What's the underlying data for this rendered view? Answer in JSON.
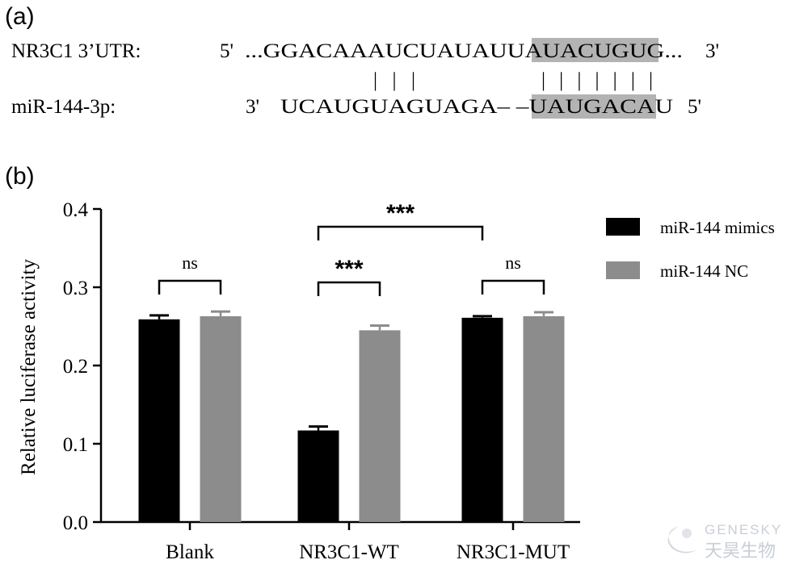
{
  "panel_a": {
    "label": "(a)",
    "row1": {
      "name": "NR3C1 3’UTR:",
      "prime_left": "5'",
      "seq_plain": "...GGACAAAUCUAUAUU",
      "seq_highlight": "AUACUGU",
      "seq_tail": "G...",
      "prime_right": "3'"
    },
    "pairing_marks": "| | |",
    "pairing_marks_seed": "| | | | | | |",
    "row2": {
      "name": "miR-144-3p:",
      "prime_left": "3'",
      "seq_plain": "UCAUGUAGUAGA– –",
      "seq_highlight": "UAUGACA",
      "seq_tail": "U",
      "prime_right": "5'"
    },
    "highlight_color": "#b3b3b3"
  },
  "panel_b": {
    "label": "(b)"
  },
  "chart_data": {
    "type": "bar",
    "categories": [
      "Blank",
      "NR3C1-WT",
      "NR3C1-MUT"
    ],
    "ylabel": "Relative luciferase activity",
    "ylim": [
      0,
      0.4
    ],
    "yticks": [
      "0.0",
      "0.1",
      "0.2",
      "0.3",
      "0.4"
    ],
    "grid": false,
    "legend_position": "top-right",
    "series": [
      {
        "name": "miR-144 mimics",
        "color": "#000000",
        "values": [
          0.259,
          0.117,
          0.261
        ],
        "errors": [
          0.005,
          0.005,
          0.002
        ]
      },
      {
        "name": "miR-144 NC",
        "color": "#8c8c8c",
        "values": [
          0.263,
          0.245,
          0.263
        ],
        "errors": [
          0.006,
          0.006,
          0.005
        ]
      }
    ],
    "significance": [
      {
        "label": "ns",
        "from": [
          0,
          0
        ],
        "to": [
          0,
          1
        ]
      },
      {
        "label": "***",
        "from": [
          1,
          0
        ],
        "to": [
          1,
          1
        ]
      },
      {
        "label": "ns",
        "from": [
          2,
          0
        ],
        "to": [
          2,
          1
        ]
      },
      {
        "label": "***",
        "from": [
          1,
          0
        ],
        "to": [
          2,
          0
        ]
      }
    ]
  },
  "watermark": {
    "brand": "GENESKY",
    "chinese": "天昊生物"
  }
}
